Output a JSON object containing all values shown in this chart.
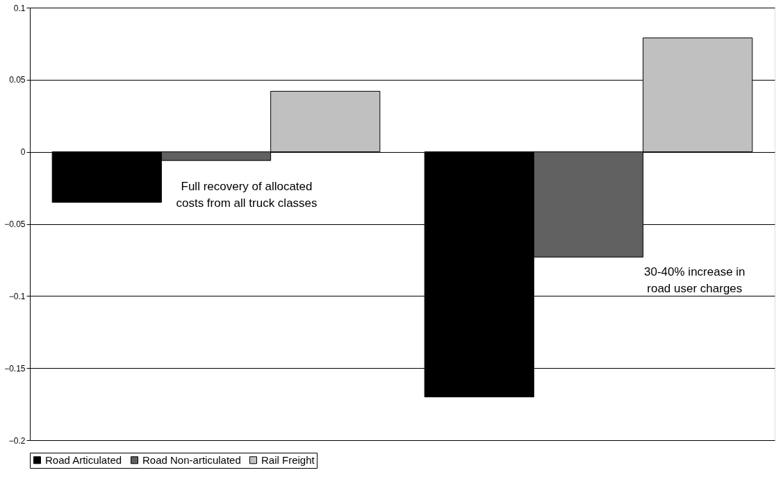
{
  "chart_data": {
    "type": "bar",
    "categories": [
      null,
      null
    ],
    "series": [
      {
        "name": "Road Articulated",
        "color": "#000000",
        "values": [
          -0.035,
          -0.17
        ]
      },
      {
        "name": "Road Non-articulated",
        "color": "#606060",
        "values": [
          -0.006,
          -0.073
        ]
      },
      {
        "name": "Rail Freight",
        "color": "#c0c0c0",
        "values": [
          0.042,
          0.079
        ]
      }
    ],
    "ylim": [
      -0.2,
      0.1
    ],
    "yticks": [
      -0.2,
      -0.15,
      -0.1,
      -0.05,
      0,
      0.05,
      0.1
    ],
    "grid": "y",
    "legend": "bottom",
    "annotations": [
      "Full recovery of allocated costs from all truck classes",
      "30-40% increase in road user charges"
    ]
  }
}
